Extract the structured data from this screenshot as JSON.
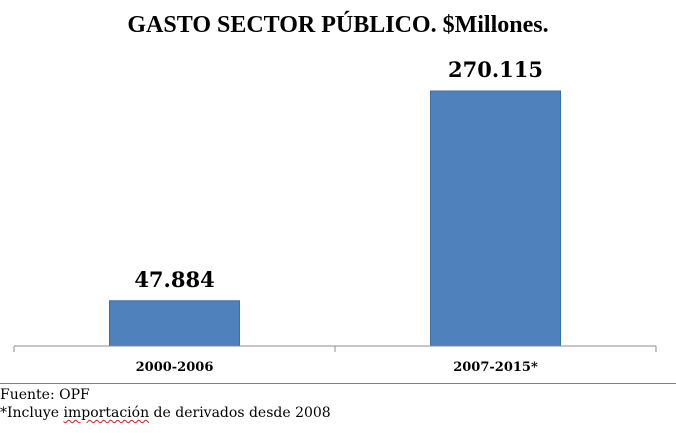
{
  "chart_data": {
    "type": "bar",
    "title": "GASTO SECTOR PÚBLICO. $Millones.",
    "categories": [
      "2000-2006",
      "2007-2015*"
    ],
    "values": [
      47884,
      270115
    ],
    "value_labels": [
      "47.884",
      "270.115"
    ],
    "ylim": [
      0,
      270115
    ],
    "grid": false,
    "legend": "none",
    "bar_color": "#4f81bd",
    "bar_border_color": "#3a6ea5"
  },
  "notes": {
    "source": "Fuente: OPF",
    "footnote_prefix": "*Incluye ",
    "footnote_flagged_word": "importación",
    "footnote_suffix": " de derivados desde 2008"
  }
}
